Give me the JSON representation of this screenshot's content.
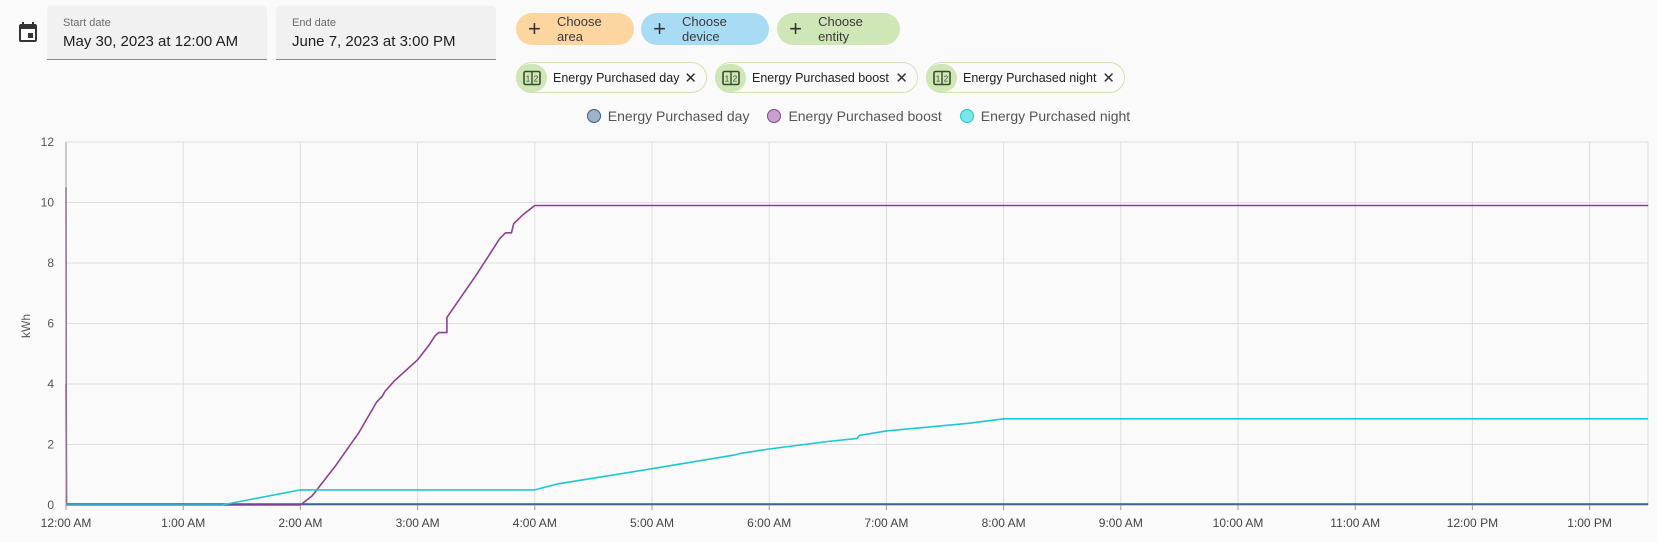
{
  "date_range": {
    "start_label": "Start date",
    "start_value": "May 30, 2023 at 12:00 AM",
    "end_label": "End date",
    "end_value": "June 7, 2023 at 3:00 PM"
  },
  "pickers": {
    "area": "Choose area",
    "device": "Choose device",
    "entity": "Choose entity"
  },
  "chips": [
    {
      "label": "Energy Purchased day"
    },
    {
      "label": "Energy Purchased boost"
    },
    {
      "label": "Energy Purchased night"
    }
  ],
  "icons": {
    "calendar": "calendar-icon",
    "plus": "plus-icon",
    "counter": "counter-icon",
    "close": "close-icon"
  },
  "chart_data": {
    "type": "line",
    "ylabel": "kWh",
    "xlabel": "",
    "ylim": [
      0,
      12
    ],
    "yticks": [
      0,
      2,
      4,
      6,
      8,
      10,
      12
    ],
    "xticks": [
      "12:00 AM",
      "1:00 AM",
      "2:00 AM",
      "3:00 AM",
      "4:00 AM",
      "5:00 AM",
      "6:00 AM",
      "7:00 AM",
      "8:00 AM",
      "9:00 AM",
      "10:00 AM",
      "11:00 AM",
      "12:00 PM",
      "1:00 PM"
    ],
    "xlim_hours": [
      0,
      13.5
    ],
    "grid": true,
    "legend_position": "top-center",
    "series": [
      {
        "name": "Energy Purchased day",
        "color": "#2f5f8f",
        "fill": "#9fb3c8",
        "points": [
          [
            0,
            4.0
          ],
          [
            0.003,
            0.03
          ],
          [
            13.5,
            0.03
          ]
        ]
      },
      {
        "name": "Energy Purchased boost",
        "color": "#8e3f96",
        "fill": "#c8a2cc",
        "points": [
          [
            0,
            10.5
          ],
          [
            0.003,
            0.0
          ],
          [
            2.0,
            0.0
          ],
          [
            2.1,
            0.3
          ],
          [
            2.3,
            1.3
          ],
          [
            2.5,
            2.4
          ],
          [
            2.65,
            3.4
          ],
          [
            2.7,
            3.6
          ],
          [
            2.72,
            3.75
          ],
          [
            2.8,
            4.1
          ],
          [
            3.0,
            4.8
          ],
          [
            3.1,
            5.3
          ],
          [
            3.15,
            5.6
          ],
          [
            3.18,
            5.7
          ],
          [
            3.25,
            5.7
          ],
          [
            3.25,
            6.2
          ],
          [
            3.5,
            7.6
          ],
          [
            3.6,
            8.2
          ],
          [
            3.7,
            8.8
          ],
          [
            3.75,
            9.0
          ],
          [
            3.8,
            9.0
          ],
          [
            3.82,
            9.3
          ],
          [
            3.9,
            9.6
          ],
          [
            4.0,
            9.9
          ],
          [
            13.5,
            9.9
          ]
        ]
      },
      {
        "name": "Energy Purchased night",
        "color": "#1ec8d0",
        "fill": "#7ae6ea",
        "points": [
          [
            0,
            0.0
          ],
          [
            1.33,
            0.0
          ],
          [
            1.6,
            0.2
          ],
          [
            2.0,
            0.5
          ],
          [
            4.0,
            0.5
          ],
          [
            4.2,
            0.7
          ],
          [
            5.0,
            1.2
          ],
          [
            5.7,
            1.65
          ],
          [
            5.75,
            1.7
          ],
          [
            6.0,
            1.85
          ],
          [
            6.5,
            2.1
          ],
          [
            6.75,
            2.2
          ],
          [
            6.77,
            2.3
          ],
          [
            7.0,
            2.45
          ],
          [
            7.7,
            2.7
          ],
          [
            7.8,
            2.75
          ],
          [
            8.0,
            2.85
          ],
          [
            13.5,
            2.85
          ]
        ]
      }
    ]
  }
}
